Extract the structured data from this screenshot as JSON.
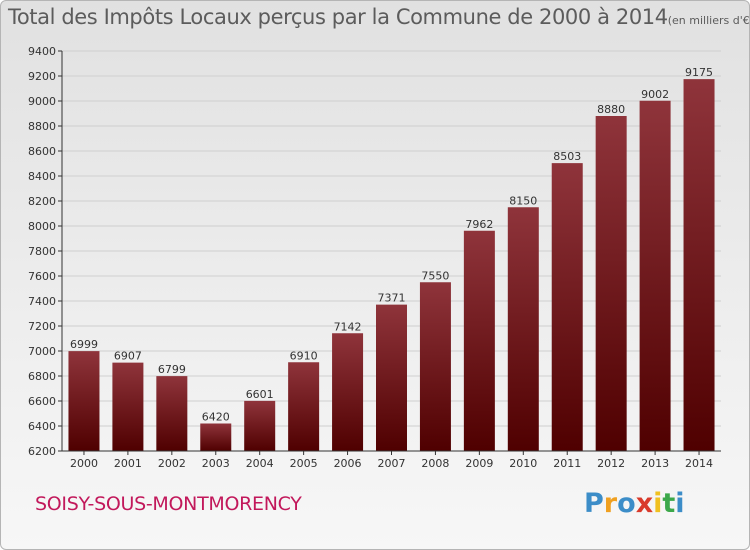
{
  "title": "Total des Impôts Locaux perçus par la Commune de 2000 à 2014",
  "unit": "(en milliers d'€)",
  "commune": "SOISY-SOUS-MONTMORENCY",
  "logo": {
    "text": "Proxiti",
    "letters": [
      "P",
      "r",
      "o",
      "x",
      "i",
      "t",
      "i"
    ],
    "colors": [
      "#3c8dc8",
      "#f0a020",
      "#3c8dc8",
      "#d93a2b",
      "#f0c020",
      "#3ca84a",
      "#3c8dc8"
    ]
  },
  "colors": {
    "bar_top": "#8f343b",
    "bar_bottom": "#4f0000",
    "grid": "#cfcfcf",
    "axis": "#333333"
  },
  "chart_data": {
    "type": "bar",
    "categories": [
      "2000",
      "2001",
      "2002",
      "2003",
      "2004",
      "2005",
      "2006",
      "2007",
      "2008",
      "2009",
      "2010",
      "2011",
      "2012",
      "2013",
      "2014"
    ],
    "values": [
      6999,
      6907,
      6799,
      6420,
      6601,
      6910,
      7142,
      7371,
      7550,
      7962,
      8150,
      8503,
      8880,
      9002,
      9175
    ],
    "title": "Total des Impôts Locaux perçus par la Commune de 2000 à 2014",
    "xlabel": "",
    "ylabel": "",
    "ylim": [
      6200,
      9400
    ],
    "yticks": [
      6200,
      6400,
      6600,
      6800,
      7000,
      7200,
      7400,
      7600,
      7800,
      8000,
      8200,
      8400,
      8600,
      8800,
      9000,
      9200,
      9400
    ],
    "grid": true,
    "data_labels": true
  }
}
